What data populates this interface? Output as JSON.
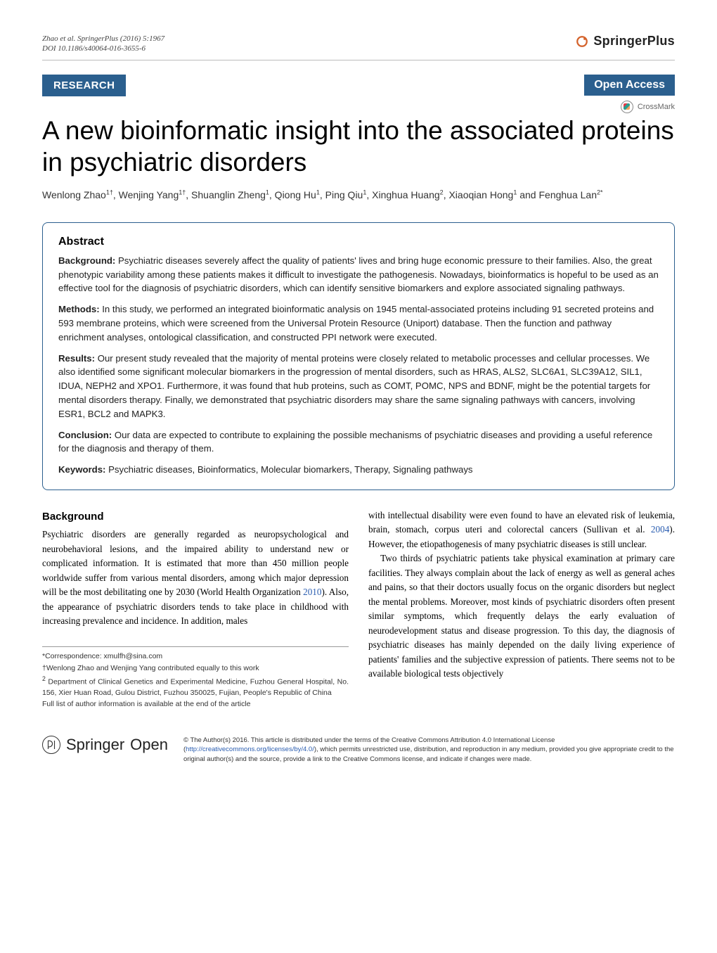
{
  "header": {
    "citation_line1": "Zhao et al. SpringerPlus  (2016) 5:1967",
    "citation_line2": "DOI 10.1186/s40064-016-3655-6",
    "publisher_name": "SpringerPlus",
    "article_type": "RESEARCH",
    "open_access_label": "Open Access",
    "crossmark_label": "CrossMark"
  },
  "title": "A new bioinformatic insight into the associated proteins in psychiatric disorders",
  "authors_html": "Wenlong Zhao<sup>1†</sup>, Wenjing Yang<sup>1†</sup>, Shuanglin Zheng<sup>1</sup>, Qiong Hu<sup>1</sup>, Ping Qiu<sup>1</sup>, Xinghua Huang<sup>2</sup>, Xiaoqian Hong<sup>1</sup> and Fenghua Lan<sup>2*</sup>",
  "abstract": {
    "heading": "Abstract",
    "background_label": "Background:",
    "background": " Psychiatric diseases severely affect the quality of patients' lives and bring huge economic pressure to their families. Also, the great phenotypic variability among these patients makes it difficult to investigate the pathogenesis. Nowadays, bioinformatics is hopeful to be used as an effective tool for the diagnosis of psychiatric disorders, which can identify sensitive biomarkers and explore associated signaling pathways.",
    "methods_label": "Methods:",
    "methods": " In this study, we performed an integrated bioinformatic analysis on 1945 mental-associated proteins including 91 secreted proteins and 593 membrane proteins, which were screened from the Universal Protein Resource (Uniport) database. Then the function and pathway enrichment analyses, ontological classification, and constructed PPI network were executed.",
    "results_label": "Results:",
    "results": " Our present study revealed that the majority of mental proteins were closely related to metabolic processes and cellular processes. We also identified some significant molecular biomarkers in the progression of mental disorders, such as HRAS, ALS2, SLC6A1, SLC39A12, SIL1, IDUA, NEPH2 and XPO1. Furthermore, it was found that hub proteins, such as COMT, POMC, NPS and BDNF, might be the potential targets for mental disorders therapy. Finally, we demonstrated that psychiatric disorders may share the same signaling pathways with cancers, involving ESR1, BCL2 and MAPK3.",
    "conclusion_label": "Conclusion:",
    "conclusion": " Our data are expected to contribute to explaining the possible mechanisms of psychiatric diseases and providing a useful reference for the diagnosis and therapy of them.",
    "keywords_label": "Keywords:",
    "keywords": " Psychiatric diseases, Bioinformatics, Molecular biomarkers, Therapy, Signaling pathways"
  },
  "body": {
    "bg_heading": "Background",
    "left_p1a": "Psychiatric disorders are generally regarded as neuropsychological and neurobehavioral lesions, and the impaired ability to understand new or complicated information. It is estimated that more than 450 million people worldwide suffer from various mental disorders, among which major depression will be the most debilitating one by 2030 (World Health Organization ",
    "left_p1_link1": "2010",
    "left_p1b": "). Also, the appearance of psychiatric disorders tends to take place in childhood with increasing prevalence and incidence. In addition, males",
    "right_p1a": "with intellectual disability were even found to have an elevated risk of leukemia, brain, stomach, corpus uteri and colorectal cancers (Sullivan et al. ",
    "right_p1_link1": "2004",
    "right_p1b": "). However, the etiopathogenesis of many psychiatric diseases is still unclear.",
    "right_p2": "Two thirds of psychiatric patients take physical examination at primary care facilities. They always complain about the lack of energy as well as general aches and pains, so that their doctors usually focus on the organic disorders but neglect the mental problems. Moreover, most kinds of psychiatric disorders often present similar symptoms, which frequently delays the early evaluation of neurodevelopment status and disease progression. To this day, the diagnosis of psychiatric diseases has mainly depended on the daily living experience of patients' families and the subjective expression of patients. There seems not to be available biological tests objectively"
  },
  "footnotes": {
    "correspondence": "*Correspondence:  xmulfh@sina.com",
    "equal": "†Wenlong Zhao and Wenjing Yang contributed equally to this work",
    "affil2a": "2",
    "affil2b": " Department of Clinical Genetics and Experimental Medicine, Fuzhou General Hospital, No. 156, Xier Huan Road, Gulou District, Fuzhou 350025, Fujian, People's Republic of China",
    "full_list": "Full list of author information is available at the end of the article"
  },
  "license": {
    "springer_open": "Springer",
    "springer_open2": "Open",
    "text_a": "© The Author(s) 2016. This article is distributed under the terms of the Creative Commons Attribution 4.0 International License (",
    "link": "http://creativecommons.org/licenses/by/4.0/",
    "text_b": "), which permits unrestricted use, distribution, and reproduction in any medium, provided you give appropriate credit to the original author(s) and the source, provide a link to the Creative Commons license, and indicate if changes were made."
  },
  "colors": {
    "badge_bg": "#2b5f8e",
    "link": "#2a5db0",
    "pub_icon": "#d4622b"
  }
}
